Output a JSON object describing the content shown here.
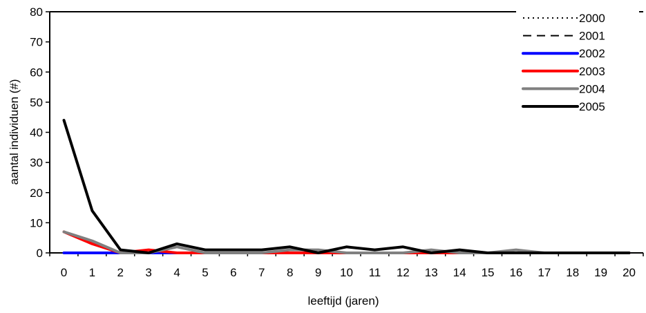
{
  "chart_data": {
    "type": "line",
    "title": "",
    "xlabel": "leeftijd (jaren)",
    "ylabel": "aantal individuen (#)",
    "categories": [
      "0",
      "1",
      "2",
      "3",
      "4",
      "5",
      "6",
      "7",
      "8",
      "9",
      "10",
      "11",
      "12",
      "13",
      "14",
      "15",
      "16",
      "17",
      "18",
      "19",
      "20"
    ],
    "ylim": [
      0,
      80
    ],
    "yticks": [
      "0",
      "10",
      "20",
      "30",
      "40",
      "50",
      "60",
      "70",
      "80"
    ],
    "grid": false,
    "legend_position": "top-right",
    "series": [
      {
        "name": "2000",
        "color": "#000000",
        "style": "dotted",
        "values": [
          0,
          0,
          0,
          0,
          0,
          0,
          0,
          0,
          0,
          0,
          0,
          0,
          0,
          0,
          0,
          0,
          0,
          0,
          0,
          0,
          0
        ]
      },
      {
        "name": "2001",
        "color": "#000000",
        "style": "dashed",
        "values": [
          0,
          0,
          0,
          0,
          0,
          0,
          0,
          0,
          0,
          0,
          0,
          0,
          0,
          0,
          0,
          0,
          0,
          0,
          0,
          0,
          0
        ]
      },
      {
        "name": "2002",
        "color": "#0000ff",
        "style": "solid",
        "values": [
          0,
          0,
          0,
          0,
          0,
          0,
          0,
          0,
          0,
          0,
          0,
          0,
          0,
          0,
          0,
          0,
          0,
          0,
          0,
          0,
          0
        ]
      },
      {
        "name": "2003",
        "color": "#ff0000",
        "style": "solid",
        "values": [
          7,
          3,
          0,
          1,
          0,
          0,
          0,
          0,
          0,
          0,
          0,
          0,
          0,
          0,
          0,
          0,
          0,
          0,
          0,
          0,
          0
        ]
      },
      {
        "name": "2004",
        "color": "#808080",
        "style": "solid",
        "values": [
          7,
          4,
          0,
          0,
          2,
          0,
          0,
          0,
          1,
          1,
          0,
          0,
          0,
          1,
          0,
          0,
          1,
          0,
          0,
          0,
          0
        ]
      },
      {
        "name": "2005",
        "color": "#000000",
        "style": "solid-thick",
        "values": [
          44,
          14,
          1,
          0,
          3,
          1,
          1,
          1,
          2,
          0,
          2,
          1,
          2,
          0,
          1,
          0,
          0,
          0,
          0,
          0,
          0
        ]
      }
    ]
  }
}
